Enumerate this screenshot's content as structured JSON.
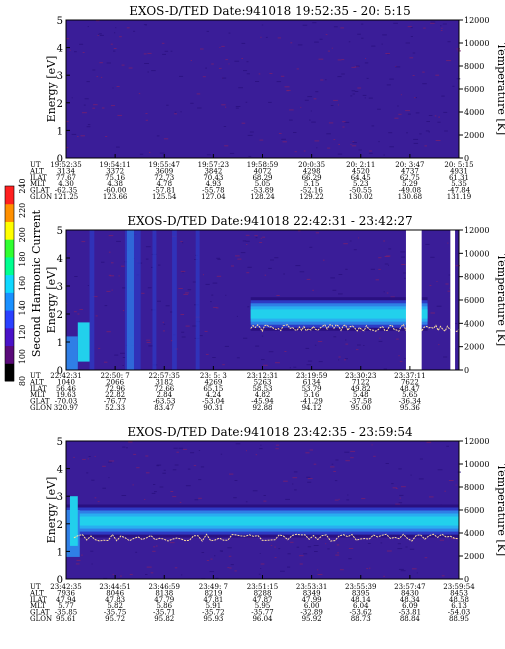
{
  "colors": {
    "background_level": "#3a1d98",
    "band_levels": [
      "#2a1080",
      "#2e39c4",
      "#2f7fe6",
      "#29aef0",
      "#22d0ec"
    ],
    "trace": "#ffe0a0",
    "gap": "#ffffff",
    "colorbar": [
      "#000000",
      "#5a0a7a",
      "#4a12c8",
      "#2a40ff",
      "#1a90ff",
      "#10d8ff",
      "#00ff90",
      "#30ff30",
      "#ffff00",
      "#ff9000",
      "#ff2020"
    ]
  },
  "colorbar": {
    "label": "Second Harmonic Current",
    "ticks": [
      "80",
      "100",
      "120",
      "140",
      "160",
      "180",
      "200",
      "220",
      "240"
    ]
  },
  "chart_data": [
    {
      "type": "heatmap",
      "title": "EXOS-D/TED  Date:941018  19:52:35 - 20: 5:15",
      "ylabel": "Energy [eV]",
      "y2label": "Temperature [K]",
      "ylim": [
        0,
        5
      ],
      "yticks": [
        "0",
        "1",
        "2",
        "3",
        "4",
        "5"
      ],
      "y2lim": [
        0,
        12000
      ],
      "y2ticks": [
        "0",
        "2000",
        "4000",
        "6000",
        "8000",
        "10000",
        "12000"
      ],
      "band": null,
      "trace": null,
      "gaps": [],
      "orbit": {
        "labels": [
          "UT",
          "ALT",
          "ILAT",
          "MLT",
          "GLAT",
          "GLON"
        ],
        "columns": [
          [
            "19:52:35",
            "3134",
            "77.67",
            "4.30",
            "-62.35",
            "121.25"
          ],
          [
            "19:54:11",
            "3372",
            "75.16",
            "4.38",
            "-60.00",
            "123.66"
          ],
          [
            "19:55:47",
            "3609",
            "72.73",
            "4.78",
            "-57.81",
            "125.54"
          ],
          [
            "19:57:23",
            "3842",
            "70.43",
            "4.93",
            "-55.78",
            "127.04"
          ],
          [
            "19:58:59",
            "4072",
            "68.29",
            "5.05",
            "-53.89",
            "128.24"
          ],
          [
            "20:0:35",
            "4298",
            "66.29",
            "5.15",
            "-52.16",
            "129.22"
          ],
          [
            "20: 2:11",
            "4520",
            "64.45",
            "5.23",
            "-50.55",
            "130.02"
          ],
          [
            "20: 3:47",
            "4737",
            "62.75",
            "5.29",
            "-49.08",
            "130.68"
          ],
          [
            "20: 5:15",
            "4931",
            "61.31",
            "5.35",
            "-47.84",
            "131.19"
          ]
        ]
      }
    },
    {
      "type": "heatmap",
      "title": "EXOS-D/TED  Date:941018  22:42:31 - 23:42:27",
      "ylabel": "Energy [eV]",
      "y2label": "Temperature [K]",
      "ylim": [
        0,
        5
      ],
      "yticks": [
        "0",
        "1",
        "2",
        "3",
        "4",
        "5"
      ],
      "y2lim": [
        0,
        12000
      ],
      "y2ticks": [
        "0",
        "2000",
        "4000",
        "6000",
        "8000",
        "10000",
        "12000"
      ],
      "band": {
        "start": 0.47,
        "end": 0.92,
        "center_ev": 2.0,
        "halfwidth_ev": 0.6
      },
      "trace": {
        "start": 0.47,
        "end": 1.0,
        "ev": 1.5
      },
      "gaps": [
        [
          0.865,
          0.905
        ],
        [
          0.978,
          0.99
        ]
      ],
      "orbit": {
        "labels": [
          "UT",
          "ALT",
          "ILAT",
          "MLT",
          "GLAT",
          "GLON"
        ],
        "columns": [
          [
            "22:42:31",
            "1040",
            "56.46",
            "19.63",
            "-70.03",
            "320.97"
          ],
          [
            "22:50: 7",
            "2066",
            "72.96",
            "22.82",
            "-76.77",
            "52.33"
          ],
          [
            "22:57:35",
            "3182",
            "72.66",
            "2.84",
            "-63.53",
            "83.47"
          ],
          [
            "23: 5: 3",
            "4269",
            "65.15",
            "4.24",
            "-53.04",
            "90.31"
          ],
          [
            "23:12:31",
            "5263",
            "58.53",
            "4.82",
            "-45.94",
            "92.88"
          ],
          [
            "23:19:59",
            "6134",
            "53.79",
            "5.16",
            "-41.29",
            "94.12"
          ],
          [
            "23:30:23",
            "7122",
            "49.82",
            "5.48",
            "-37.58",
            "95.00"
          ],
          [
            "23:37:11",
            "7622",
            "48.47",
            "5.65",
            "-36.34",
            "95.36"
          ]
        ]
      }
    },
    {
      "type": "heatmap",
      "title": "EXOS-D/TED  Date:941018  23:42:35 - 23:59:54",
      "ylabel": "Energy [eV]",
      "y2label": "Temperature [K]",
      "ylim": [
        0,
        5
      ],
      "yticks": [
        "0",
        "1",
        "2",
        "3",
        "4",
        "5"
      ],
      "y2lim": [
        0,
        12000
      ],
      "y2ticks": [
        "0",
        "2000",
        "4000",
        "6000",
        "8000",
        "10000",
        "12000"
      ],
      "band": {
        "start": 0.0,
        "end": 1.0,
        "center_ev": 2.1,
        "halfwidth_ev": 0.6
      },
      "trace": {
        "start": 0.02,
        "end": 1.0,
        "ev": 1.5
      },
      "gaps": [],
      "orbit": {
        "labels": [
          "UT",
          "ALT",
          "ILAT",
          "MLT",
          "GLAT",
          "GLON"
        ],
        "columns": [
          [
            "23:42:35",
            "7936",
            "47.94",
            "5.77",
            "-35.85",
            "95.61"
          ],
          [
            "23:44:51",
            "8046",
            "47.83",
            "5.82",
            "-35.75",
            "95.72"
          ],
          [
            "23:46:59",
            "8138",
            "47.79",
            "5.86",
            "-35.71",
            "95.82"
          ],
          [
            "23:49: 7",
            "8219",
            "47.81",
            "5.91",
            "-35.72",
            "95.93"
          ],
          [
            "23:51:15",
            "8288",
            "47.87",
            "5.95",
            "-35.77",
            "96.04"
          ],
          [
            "23:53:31",
            "8349",
            "47.99",
            "6.00",
            "-32.89",
            "95.92"
          ],
          [
            "23:55:39",
            "8395",
            "48.14",
            "6.04",
            "-53.62",
            "88.73"
          ],
          [
            "23:57:47",
            "8430",
            "48.34",
            "6.09",
            "-53.81",
            "88.84"
          ],
          [
            "23:59:54",
            "8453",
            "48.58",
            "6.13",
            "-54.03",
            "88.95"
          ]
        ]
      }
    }
  ]
}
